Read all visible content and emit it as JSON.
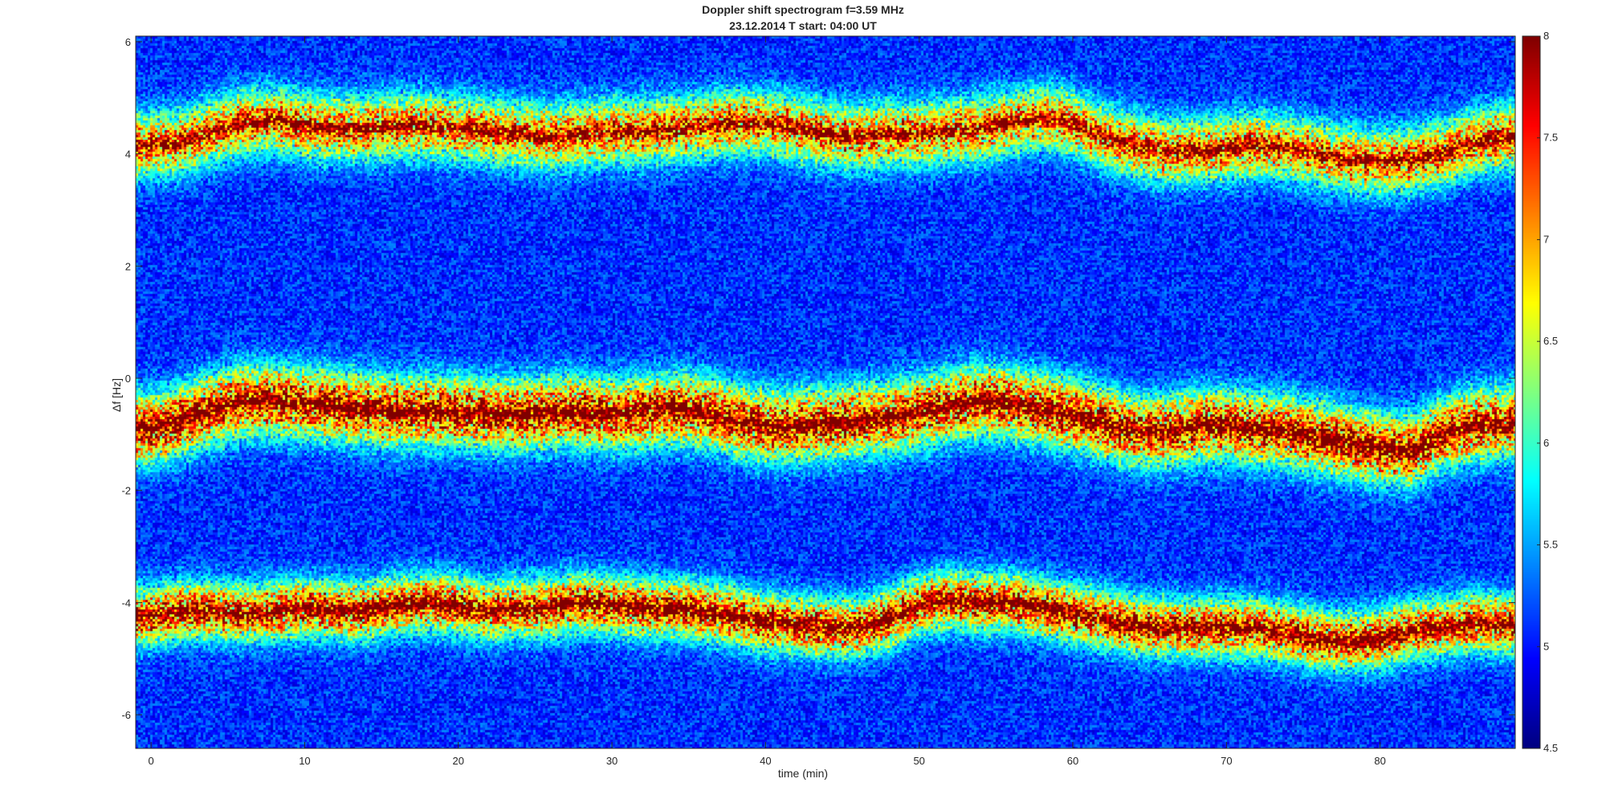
{
  "chart_data": {
    "type": "heatmap",
    "title": "Doppler shift spectrogram f=3.59 MHz",
    "subtitle": "23.12.2014    T start: 04:00 UT",
    "xlabel": "time (min)",
    "ylabel": "Δf [Hz]",
    "xlim": [
      -1,
      88.8
    ],
    "ylim": [
      -6.6,
      6.1
    ],
    "x_ticks": [
      0,
      10,
      20,
      30,
      40,
      50,
      60,
      70,
      80
    ],
    "y_ticks": [
      6,
      4,
      2,
      0,
      -2,
      -4,
      -6
    ],
    "colorbar": {
      "colormap": "jet",
      "range": [
        4.5,
        8
      ],
      "ticks": [
        "8",
        "7.5",
        "7",
        "6.5",
        "6",
        "5.5",
        "5",
        "4.5"
      ]
    },
    "series": [
      {
        "time": [
          0,
          2,
          4,
          6,
          8,
          10,
          12,
          14,
          16,
          18,
          20,
          22,
          24,
          26,
          28,
          30,
          32,
          34,
          36,
          38,
          40,
          42,
          44,
          46,
          48,
          50,
          52,
          54,
          56,
          58,
          60,
          62,
          64,
          66,
          68,
          70,
          72,
          74,
          76,
          78,
          80,
          82,
          84,
          86,
          88
        ],
        "freq": [
          4.15,
          4.2,
          4.4,
          4.55,
          4.6,
          4.5,
          4.45,
          4.45,
          4.5,
          4.5,
          4.45,
          4.4,
          4.35,
          4.3,
          4.35,
          4.4,
          4.4,
          4.45,
          4.5,
          4.55,
          4.55,
          4.45,
          4.35,
          4.3,
          4.35,
          4.35,
          4.4,
          4.45,
          4.55,
          4.65,
          4.55,
          4.3,
          4.15,
          4.05,
          4.05,
          4.1,
          4.15,
          4.1,
          4.0,
          3.9,
          3.85,
          3.9,
          4.0,
          4.2,
          4.3
        ]
      },
      {
        "time": [
          0,
          2,
          4,
          6,
          8,
          10,
          12,
          14,
          16,
          18,
          20,
          22,
          24,
          26,
          28,
          30,
          32,
          34,
          36,
          38,
          40,
          42,
          44,
          46,
          48,
          50,
          52,
          54,
          56,
          58,
          60,
          62,
          64,
          66,
          68,
          70,
          72,
          74,
          76,
          78,
          80,
          82,
          84,
          86,
          88
        ],
        "freq": [
          -0.9,
          -0.75,
          -0.55,
          -0.4,
          -0.4,
          -0.45,
          -0.5,
          -0.55,
          -0.6,
          -0.6,
          -0.6,
          -0.65,
          -0.65,
          -0.6,
          -0.6,
          -0.65,
          -0.6,
          -0.55,
          -0.6,
          -0.75,
          -0.85,
          -0.85,
          -0.8,
          -0.75,
          -0.7,
          -0.6,
          -0.5,
          -0.4,
          -0.45,
          -0.55,
          -0.65,
          -0.8,
          -0.95,
          -0.95,
          -0.85,
          -0.85,
          -0.9,
          -0.95,
          -1.05,
          -1.15,
          -1.25,
          -1.3,
          -1.0,
          -0.85,
          -0.8
        ]
      },
      {
        "time": [
          0,
          2,
          4,
          6,
          8,
          10,
          12,
          14,
          16,
          18,
          20,
          22,
          24,
          26,
          28,
          30,
          32,
          34,
          36,
          38,
          40,
          42,
          44,
          46,
          48,
          50,
          52,
          54,
          56,
          58,
          60,
          62,
          64,
          66,
          68,
          70,
          72,
          74,
          76,
          78,
          80,
          82,
          84,
          86,
          88
        ],
        "freq": [
          -4.25,
          -4.15,
          -4.15,
          -4.2,
          -4.15,
          -4.1,
          -4.15,
          -4.15,
          -4.05,
          -4.0,
          -4.05,
          -4.15,
          -4.1,
          -4.1,
          -4.0,
          -4.05,
          -4.1,
          -4.1,
          -4.15,
          -4.25,
          -4.35,
          -4.4,
          -4.45,
          -4.45,
          -4.3,
          -4.05,
          -3.95,
          -4.0,
          -4.0,
          -4.1,
          -4.2,
          -4.3,
          -4.4,
          -4.45,
          -4.45,
          -4.45,
          -4.45,
          -4.55,
          -4.65,
          -4.7,
          -4.65,
          -4.5,
          -4.45,
          -4.35,
          -4.4
        ]
      }
    ]
  }
}
